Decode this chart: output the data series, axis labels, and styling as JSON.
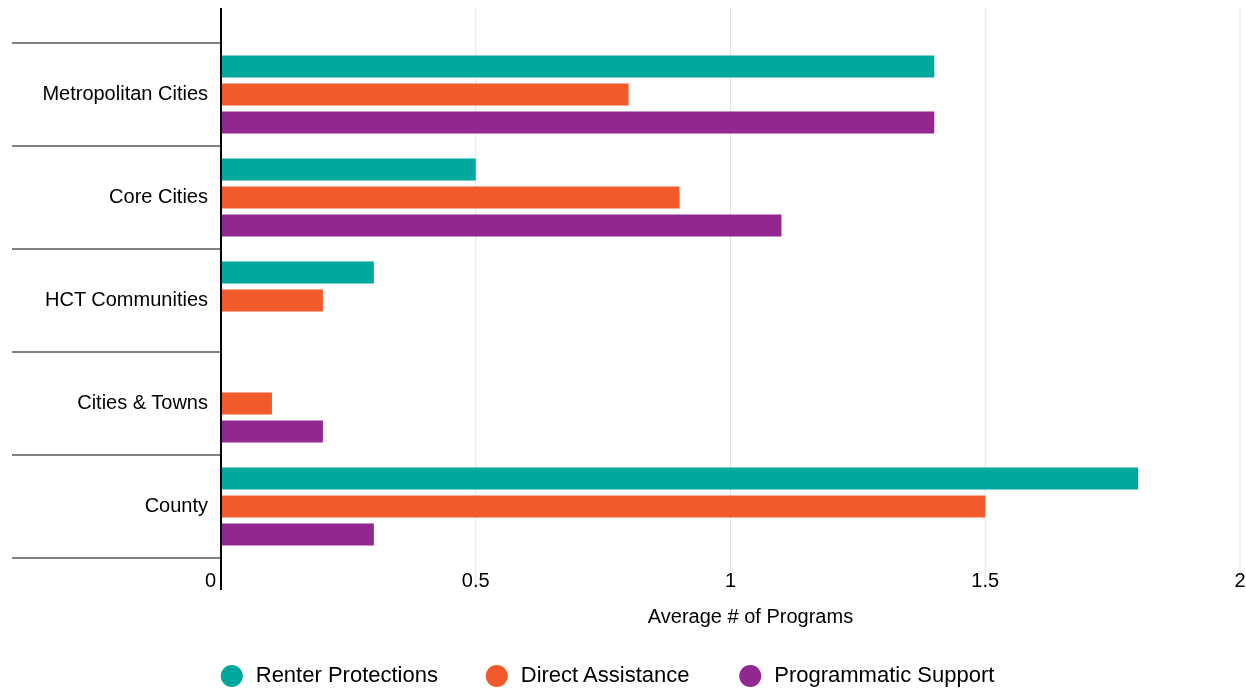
{
  "chart_data": {
    "type": "bar",
    "orientation": "horizontal",
    "xlabel": "Average # of Programs",
    "categories": [
      "Metropolitan Cities",
      "Core Cities",
      "HCT Communities",
      "Cities & Towns",
      "County"
    ],
    "series": [
      {
        "name": "Renter Protections",
        "color": "#00a89d",
        "values": [
          1.4,
          0.5,
          0.3,
          0,
          1.8
        ]
      },
      {
        "name": "Direct Assistance",
        "color": "#f15a2b",
        "values": [
          0.8,
          0.9,
          0.2,
          0.1,
          1.5
        ]
      },
      {
        "name": "Programmatic Support",
        "color": "#92278f",
        "values": [
          1.4,
          1.1,
          0,
          0.2,
          0.3
        ]
      }
    ],
    "xlim": [
      0,
      2
    ],
    "xticks": [
      0,
      0.5,
      1,
      1.5,
      2
    ],
    "grid": "x",
    "legend": "bottom"
  }
}
